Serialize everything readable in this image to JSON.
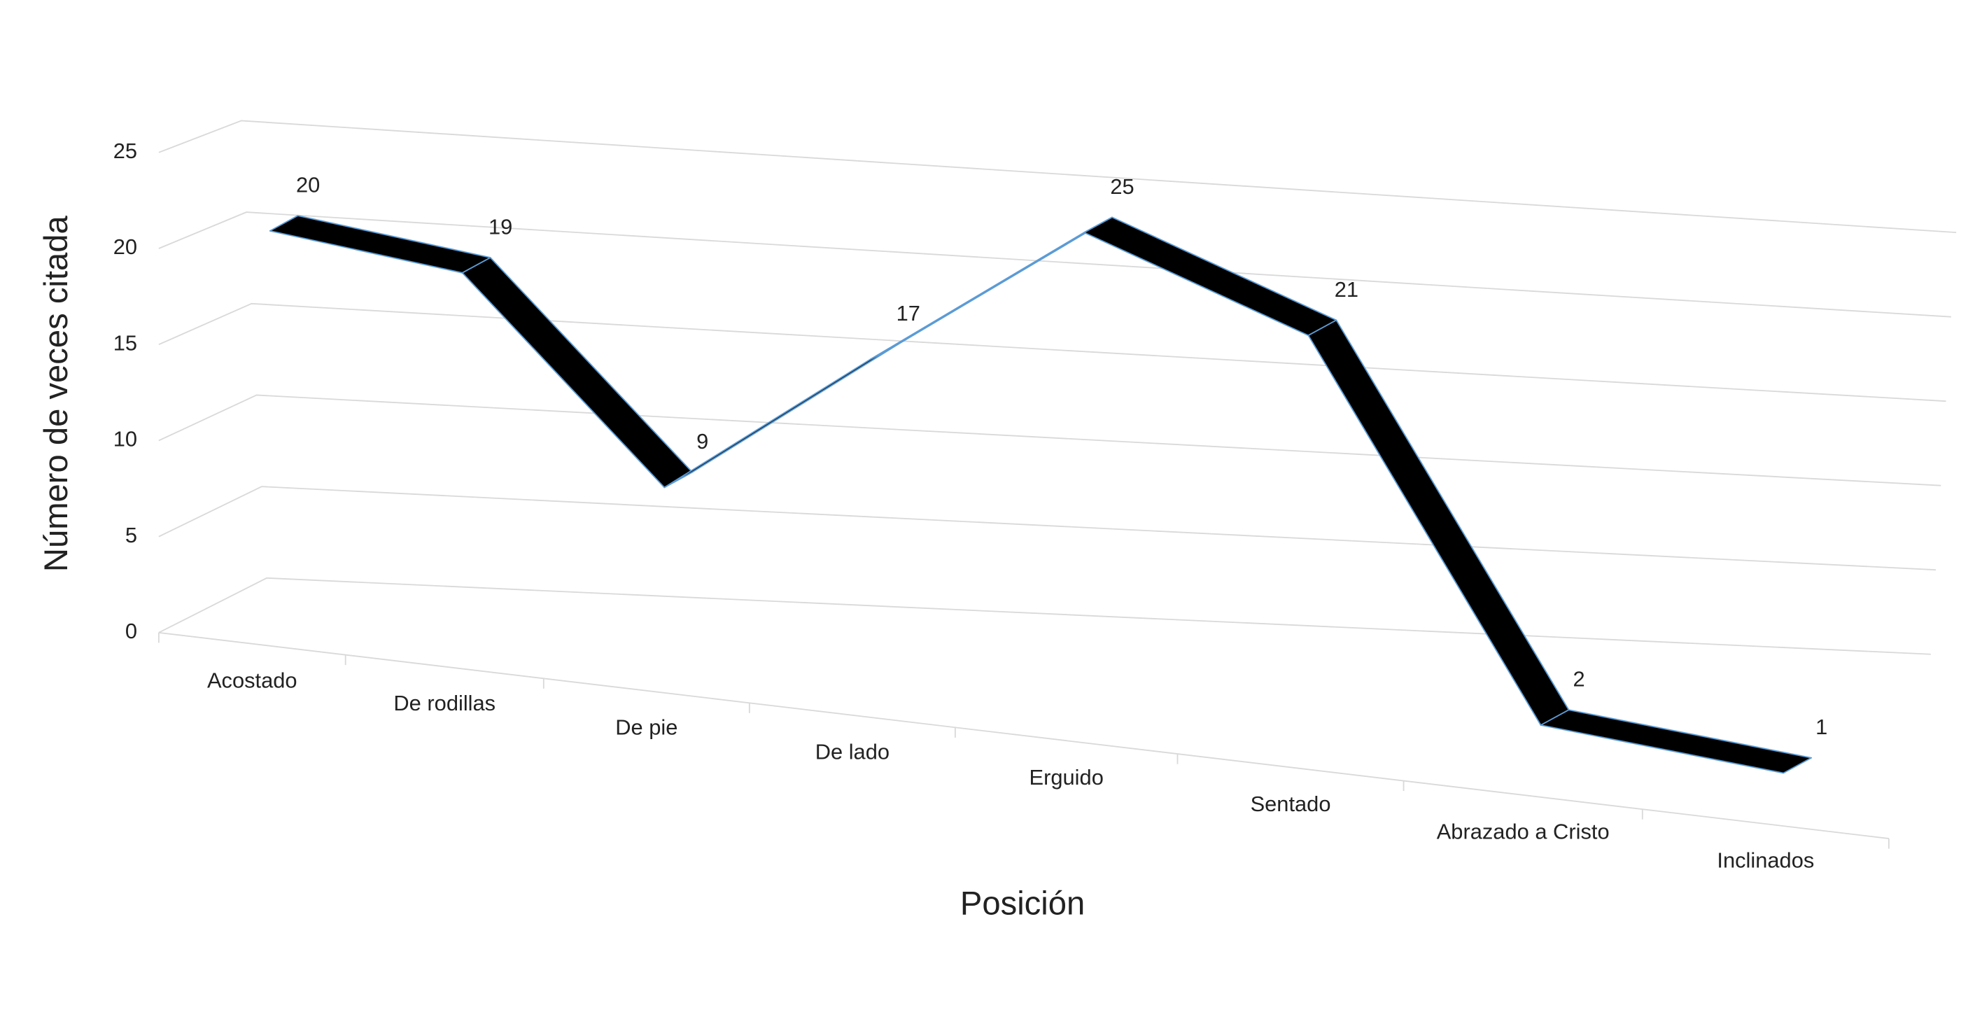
{
  "chart_data": {
    "type": "line3d",
    "x_label": "Posición",
    "y_label": "Número de veces citada",
    "categories": [
      "Acostado",
      "De rodillas",
      "De pie",
      "De lado",
      "Erguido",
      "Sentado",
      "Abrazado a Cristo",
      "Inclinados"
    ],
    "values": [
      20,
      19,
      9,
      17,
      25,
      21,
      2,
      1
    ],
    "color": "#000000",
    "edge_color": "#5b9bd5",
    "ylim": [
      0,
      25
    ],
    "yticks": [
      0,
      5,
      10,
      15,
      20,
      25
    ],
    "grid": true,
    "data_labels": true
  }
}
